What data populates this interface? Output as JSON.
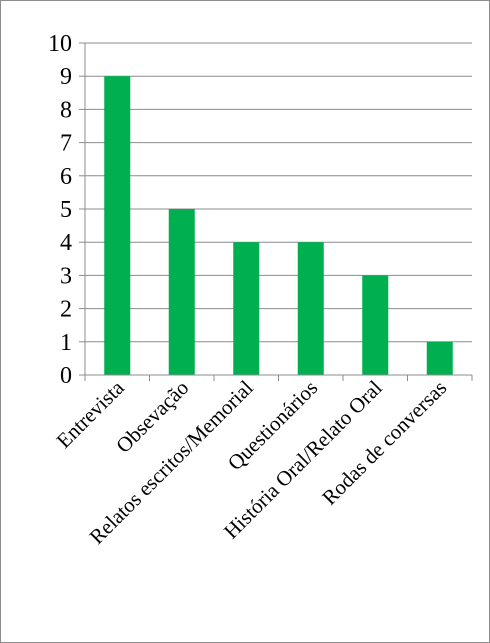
{
  "chart_data": {
    "type": "bar",
    "title": "",
    "xlabel": "",
    "ylabel": "",
    "categories": [
      "Entrevista",
      "Obsevação",
      "Relatos escritos/Memorial",
      "Questionários",
      "História Oral/Relato Oral",
      "Rodas de conversas"
    ],
    "values": [
      9,
      5,
      4,
      4,
      3,
      1
    ],
    "ylim": [
      0,
      10
    ],
    "yticks": [
      0,
      1,
      2,
      3,
      4,
      5,
      6,
      7,
      8,
      9,
      10
    ],
    "grid": "horizontal",
    "legend": "none",
    "bar_color": "#00b050",
    "grid_color": "#8c8c8c",
    "axis_color": "#8c8c8c",
    "text_color": "#000000"
  }
}
